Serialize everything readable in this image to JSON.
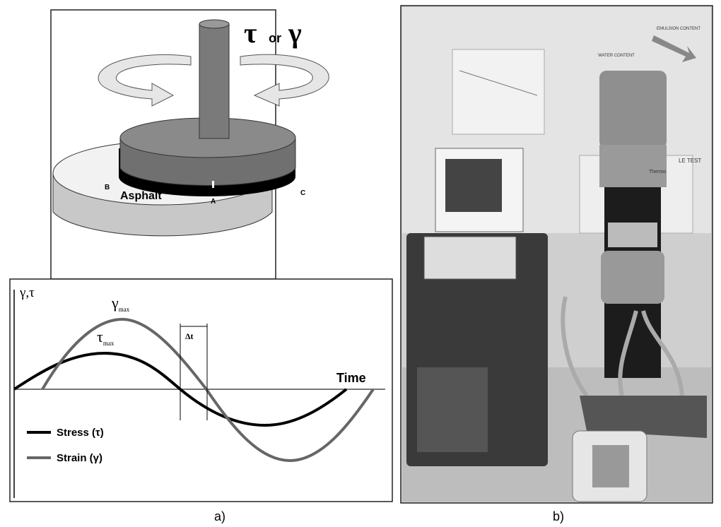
{
  "panel_a": {
    "diagram": {
      "symbol_tau": "τ",
      "or": "or",
      "symbol_gamma": "γ",
      "point_b": "B",
      "point_c": "C",
      "point_a": "A",
      "material": "Asphalt"
    },
    "plot": {
      "axis_label": "γ,τ",
      "gamma_max": {
        "symbol": "γ",
        "sub": "max"
      },
      "tau_max": {
        "symbol": "τ",
        "sub": "max"
      },
      "delta_t": "Δt",
      "time": "Time",
      "legend": [
        "Stress (τ)",
        "Strain (γ)"
      ]
    },
    "caption": "a)"
  },
  "panel_b": {
    "caption": "b)",
    "photo_texts": [
      "WATER CONTENT",
      "EMULSION CONTENT",
      "LE TEST",
      "Thermo"
    ]
  }
}
